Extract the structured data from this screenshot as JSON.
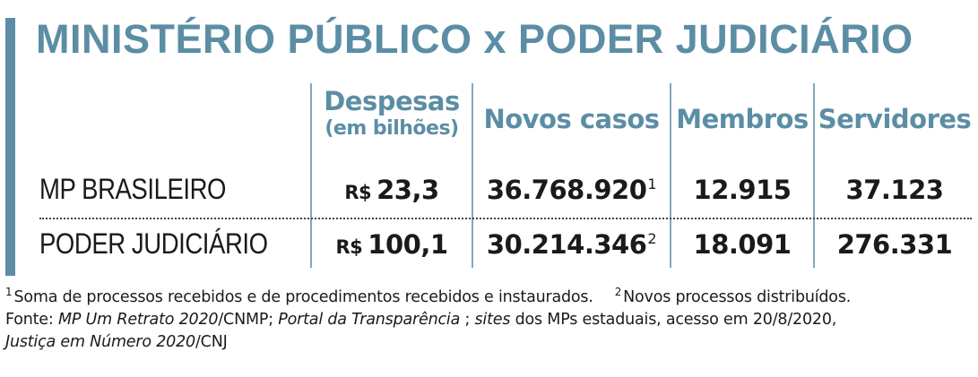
{
  "title": "MINISTÉRIO PÚBLICO x PODER JUDICIÁRIO",
  "colors": {
    "accent": "#5b8ea5",
    "text": "#1a1a1a"
  },
  "chart_data": {
    "type": "table",
    "title": "MINISTÉRIO PÚBLICO x PODER JUDICIÁRIO",
    "columns": [
      {
        "label": "Despesas",
        "sublabel": "(em bilhões)"
      },
      {
        "label": "Novos casos"
      },
      {
        "label": "Membros"
      },
      {
        "label": "Servidores"
      }
    ],
    "rows": [
      {
        "label": "MP BRASILEIRO",
        "despesas_currency": "R$",
        "despesas_value": "23,3",
        "novos_casos": "36.768.920",
        "novos_casos_note": "1",
        "membros": "12.915",
        "servidores": "37.123"
      },
      {
        "label": "PODER JUDICIÁRIO",
        "despesas_currency": "R$",
        "despesas_value": "100,1",
        "novos_casos": "30.214.346",
        "novos_casos_note": "2",
        "membros": "18.091",
        "servidores": "276.331"
      }
    ]
  },
  "notes": {
    "note1_marker": "1",
    "note1_text": "Soma de processos recebidos e de procedimentos recebidos e instaurados.",
    "note2_marker": "2",
    "note2_text": "Novos processos distribuídos.",
    "source_prefix": "Fonte: ",
    "source_1": "MP Um Retrato 2020",
    "source_2": "/CNMP; ",
    "source_3": "Portal da Transparência",
    "source_4": " ; ",
    "source_5": "sites",
    "source_6": " dos MPs estaduais, acesso em 20/8/2020,",
    "source_7": "Justiça em Número 2020",
    "source_8": "/CNJ"
  }
}
